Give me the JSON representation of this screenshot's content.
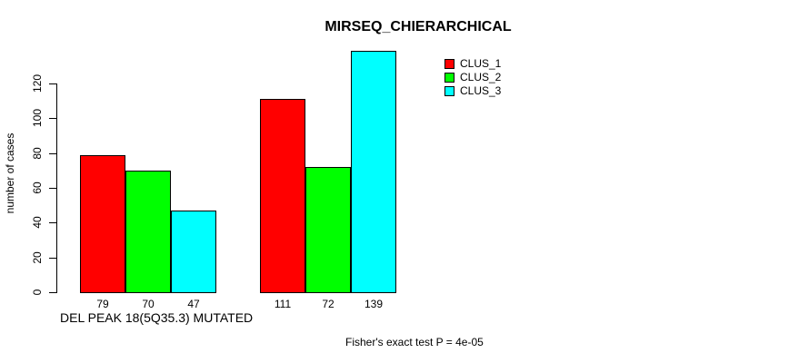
{
  "chart_data": {
    "type": "bar",
    "title": "MIRSEQ_CHIERARCHICAL",
    "ylabel": "number of cases",
    "xlabel": "DEL PEAK 18(5Q35.3) MUTATED",
    "annotation": "Fisher's exact test P = 4e-05",
    "yticks": [
      0,
      20,
      40,
      60,
      80,
      100,
      120
    ],
    "ylim": [
      0,
      139
    ],
    "grid": false,
    "legend_position": "top-right-outside",
    "bar_value_labels_shown": true,
    "series": [
      {
        "name": "CLUS_1",
        "color": "#ff0000",
        "values": [
          79,
          111
        ]
      },
      {
        "name": "CLUS_2",
        "color": "#00ff00",
        "values": [
          70,
          72
        ]
      },
      {
        "name": "CLUS_3",
        "color": "#00ffff",
        "values": [
          47,
          139
        ]
      }
    ]
  }
}
